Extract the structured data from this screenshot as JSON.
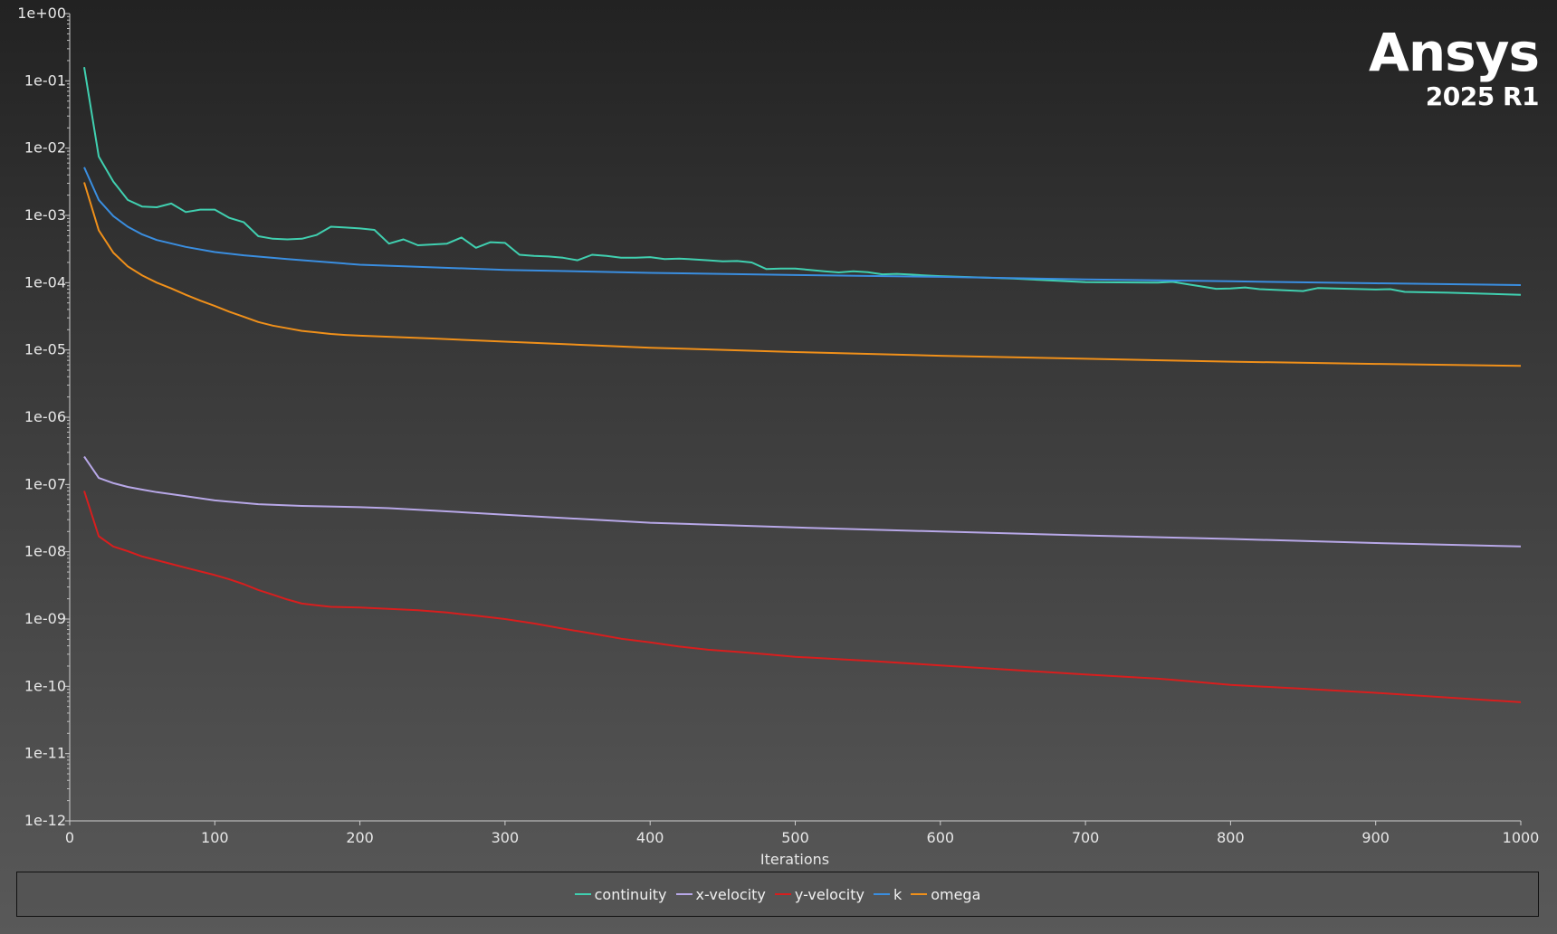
{
  "branding": {
    "name": "Ansys",
    "version": "2025 R1"
  },
  "chart_data": {
    "type": "line",
    "xlabel": "Iterations",
    "ylabel": "",
    "yscale": "log",
    "xlim": [
      0,
      1000
    ],
    "ylim": [
      1e-12,
      1
    ],
    "xticks": [
      0,
      100,
      200,
      300,
      400,
      500,
      600,
      700,
      800,
      900,
      1000
    ],
    "xtick_labels": [
      "0",
      "100",
      "200",
      "300",
      "400",
      "500",
      "600",
      "700",
      "800",
      "900",
      "1000"
    ],
    "yticks": [
      1,
      0.1,
      0.01,
      0.001,
      0.0001,
      1e-05,
      1e-06,
      1e-07,
      1e-08,
      1e-09,
      1e-10,
      1e-11,
      1e-12
    ],
    "ytick_labels": [
      "1e+00",
      "1e-01",
      "1e-02",
      "1e-03",
      "1e-04",
      "1e-05",
      "1e-06",
      "1e-07",
      "1e-08",
      "1e-09",
      "1e-10",
      "1e-11",
      "1e-12"
    ],
    "grid": false,
    "legend_position": "bottom",
    "series": [
      {
        "name": "continuity",
        "color": "#40d0b0",
        "x": [
          10,
          20,
          30,
          40,
          50,
          60,
          70,
          80,
          90,
          100,
          110,
          120,
          130,
          140,
          150,
          160,
          170,
          180,
          190,
          200,
          210,
          220,
          230,
          240,
          250,
          260,
          270,
          280,
          290,
          300,
          310,
          320,
          330,
          340,
          350,
          360,
          370,
          380,
          390,
          400,
          410,
          420,
          430,
          440,
          450,
          460,
          470,
          480,
          490,
          500,
          510,
          520,
          530,
          540,
          550,
          560,
          570,
          580,
          590,
          600,
          650,
          700,
          750,
          760,
          770,
          780,
          790,
          800,
          810,
          820,
          850,
          860,
          900,
          910,
          920,
          950,
          1000
        ],
        "y": [
          0.16,
          0.0075,
          0.0032,
          0.0017,
          0.00135,
          0.00132,
          0.0015,
          0.00112,
          0.00122,
          0.00122,
          0.00092,
          0.00079,
          0.00049,
          0.00045,
          0.00044,
          0.00045,
          0.00051,
          0.00068,
          0.00066,
          0.00064,
          0.00061,
          0.00038,
          0.00044,
          0.00036,
          0.00037,
          0.00038,
          0.00047,
          0.00033,
          0.0004,
          0.00039,
          0.00026,
          0.00025,
          0.000245,
          0.000235,
          0.000215,
          0.00026,
          0.00025,
          0.000235,
          0.000235,
          0.00024,
          0.000225,
          0.000228,
          0.000222,
          0.000215,
          0.000208,
          0.00021,
          0.0002,
          0.00016,
          0.000162,
          0.000162,
          0.000155,
          0.000148,
          0.000142,
          0.000148,
          0.000143,
          0.000133,
          0.000135,
          0.000132,
          0.000128,
          0.000125,
          0.000115,
          0.000102,
          0.0001,
          0.000103,
          9.5e-05,
          8.8e-05,
          8.1e-05,
          8.2e-05,
          8.5e-05,
          8e-05,
          7.5e-05,
          8.3e-05,
          7.9e-05,
          8e-05,
          7.3e-05,
          7.1e-05,
          6.6e-05
        ]
      },
      {
        "name": "x-velocity",
        "color": "#b8a8e8",
        "x": [
          10,
          20,
          30,
          40,
          50,
          60,
          80,
          100,
          130,
          160,
          200,
          220,
          250,
          300,
          400,
          500,
          600,
          700,
          800,
          900,
          1000
        ],
        "y": [
          2.6e-07,
          1.25e-07,
          1.05e-07,
          9.2e-08,
          8.4e-08,
          7.7e-08,
          6.7e-08,
          5.8e-08,
          5.1e-08,
          4.8e-08,
          4.6e-08,
          4.45e-08,
          4.1e-08,
          3.55e-08,
          2.7e-08,
          2.3e-08,
          2e-08,
          1.75e-08,
          1.55e-08,
          1.35e-08,
          1.2e-08
        ]
      },
      {
        "name": "y-velocity",
        "color": "#d81e1e",
        "x": [
          10,
          20,
          30,
          40,
          50,
          60,
          70,
          80,
          90,
          100,
          110,
          120,
          130,
          140,
          150,
          160,
          170,
          180,
          190,
          200,
          240,
          260,
          280,
          300,
          320,
          340,
          360,
          380,
          400,
          420,
          440,
          460,
          480,
          500,
          550,
          600,
          650,
          700,
          750,
          760,
          800,
          850,
          900,
          950,
          1000
        ],
        "y": [
          8e-08,
          1.7e-08,
          1.2e-08,
          1.02e-08,
          8.5e-09,
          7.5e-09,
          6.6e-09,
          5.8e-09,
          5.1e-09,
          4.5e-09,
          3.9e-09,
          3.3e-09,
          2.7e-09,
          2.3e-09,
          1.95e-09,
          1.7e-09,
          1.6e-09,
          1.52e-09,
          1.5e-09,
          1.48e-09,
          1.35e-09,
          1.25e-09,
          1.12e-09,
          1e-09,
          8.6e-10,
          7.2e-10,
          6.1e-10,
          5.1e-10,
          4.5e-10,
          3.9e-10,
          3.5e-10,
          3.25e-10,
          3e-10,
          2.75e-10,
          2.4e-10,
          2.05e-10,
          1.75e-10,
          1.5e-10,
          1.3e-10,
          1.25e-10,
          1.05e-10,
          9.2e-11,
          8e-11,
          6.8e-11,
          5.8e-11
        ]
      },
      {
        "name": "k",
        "color": "#3a8ee0",
        "x": [
          10,
          20,
          30,
          40,
          50,
          60,
          80,
          100,
          120,
          150,
          200,
          300,
          400,
          500,
          600,
          700,
          800,
          900,
          1000
        ],
        "y": [
          0.0052,
          0.0017,
          0.00098,
          0.00068,
          0.00052,
          0.00043,
          0.00034,
          0.000285,
          0.000255,
          0.000225,
          0.000185,
          0.000155,
          0.00014,
          0.00013,
          0.000122,
          0.000112,
          0.000105,
          9.8e-05,
          9.2e-05
        ]
      },
      {
        "name": "omega",
        "color": "#f0901a",
        "x": [
          10,
          20,
          30,
          40,
          50,
          60,
          70,
          80,
          90,
          100,
          110,
          120,
          130,
          140,
          150,
          160,
          170,
          180,
          190,
          200,
          250,
          300,
          400,
          500,
          600,
          700,
          800,
          900,
          1000
        ],
        "y": [
          0.0031,
          0.0006,
          0.00028,
          0.000175,
          0.000128,
          0.0001,
          8.2e-05,
          6.6e-05,
          5.4e-05,
          4.5e-05,
          3.7e-05,
          3.1e-05,
          2.6e-05,
          2.3e-05,
          2.1e-05,
          1.92e-05,
          1.82e-05,
          1.73e-05,
          1.67e-05,
          1.63e-05,
          1.48e-05,
          1.33e-05,
          1.08e-05,
          9.3e-06,
          8.2e-06,
          7.4e-06,
          6.7e-06,
          6.2e-06,
          5.8e-06
        ]
      }
    ]
  }
}
